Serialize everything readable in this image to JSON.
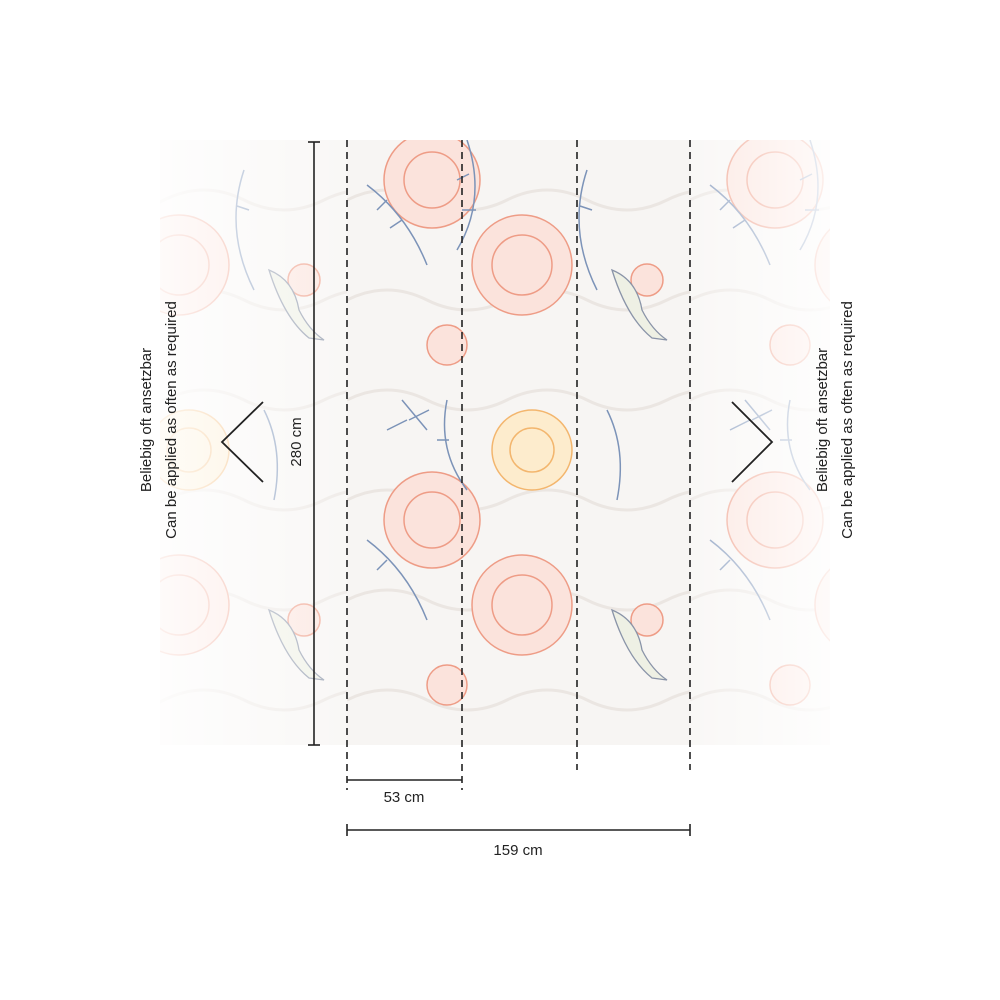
{
  "note": {
    "lines": [
      "Beliebig oft ansetzbar",
      "Can be applied as often as required"
    ]
  },
  "dimensions": {
    "height": "280 cm",
    "strip_width": "53 cm",
    "total_width": "159 cm"
  }
}
